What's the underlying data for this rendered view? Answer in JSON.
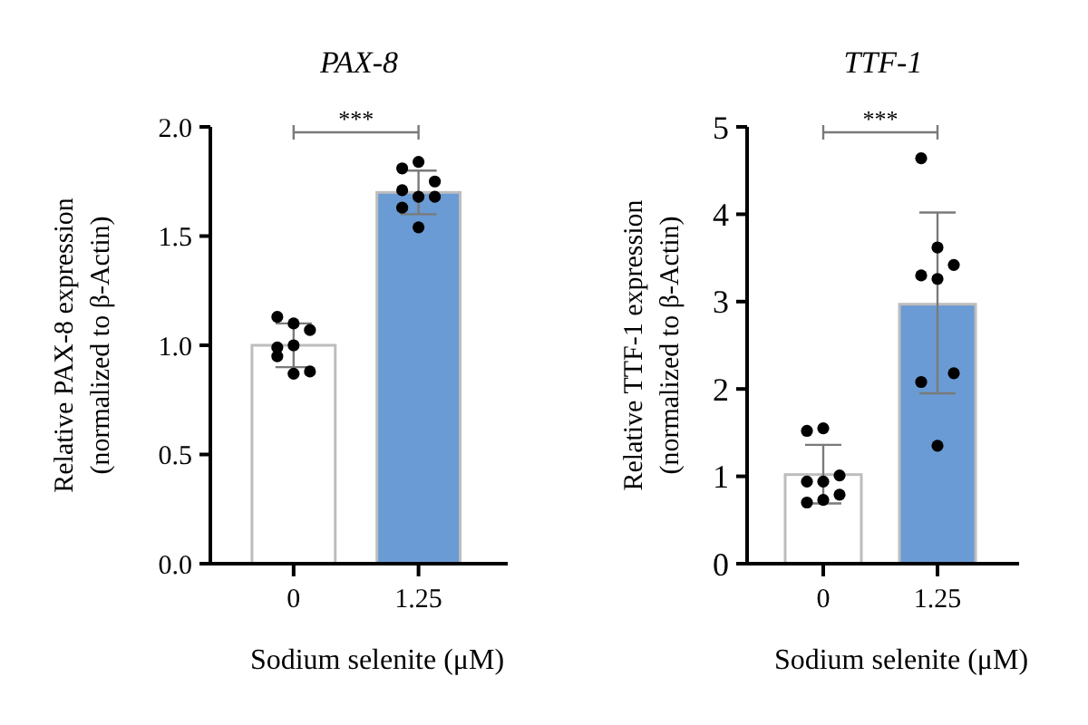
{
  "chart_data": [
    {
      "type": "bar",
      "title": "PAX-8",
      "xlabel": "Sodium selenite (μM)",
      "ylabel": "Relative PAX-8 expression\n(normalized to β-Actin)",
      "categories": [
        "0",
        "1.25"
      ],
      "ylim": [
        0,
        2
      ],
      "yticks": [
        {
          "value": 0,
          "label": "0.0"
        },
        {
          "value": 0.5,
          "label": "0.5"
        },
        {
          "value": 1,
          "label": "1.0"
        },
        {
          "value": 1.5,
          "label": "1.5"
        },
        {
          "value": 2,
          "label": "2.0"
        }
      ],
      "annotations": [
        "***"
      ],
      "series": [
        {
          "values": [
            1.0,
            1.7
          ],
          "colors": [
            "#ffffff",
            "#6a9bd4"
          ],
          "errors": [
            0.1,
            0.1
          ]
        },
        {
          "type": "scatter",
          "color": "#000000",
          "x": [
            "0",
            "0",
            "0",
            "0",
            "0",
            "0",
            "0",
            "0",
            "1.25",
            "1.25",
            "1.25",
            "1.25",
            "1.25",
            "1.25",
            "1.25",
            "1.25"
          ],
          "values": [
            1.13,
            1.1,
            1.07,
            0.99,
            1.0,
            0.88,
            0.95,
            0.87,
            1.81,
            1.84,
            1.75,
            1.71,
            1.68,
            1.68,
            1.63,
            1.54
          ]
        }
      ]
    },
    {
      "type": "bar",
      "title": "TTF-1",
      "xlabel": "Sodium selenite (μM)",
      "ylabel": "Relative TTF-1 expression\n(normalized to β-Actin)",
      "categories": [
        "0",
        "1.25"
      ],
      "ylim": [
        0,
        5
      ],
      "yticks": [
        0,
        1,
        2,
        3,
        4,
        5
      ],
      "annotations": [
        "***"
      ],
      "series": [
        {
          "values": [
            1.02,
            2.97
          ],
          "colors": [
            "#ffffff",
            "#6a9bd4"
          ],
          "errors": [
            [
              0.69,
              1.36
            ],
            [
              1.95,
              4.02
            ]
          ]
        },
        {
          "type": "scatter",
          "color": "#000000",
          "x": [
            "0",
            "0",
            "0",
            "0",
            "0",
            "0",
            "0",
            "0",
            "1.25",
            "1.25",
            "1.25",
            "1.25",
            "1.25",
            "1.25",
            "1.25",
            "1.25"
          ],
          "values": [
            1.52,
            1.55,
            1.01,
            0.94,
            0.94,
            0.79,
            0.7,
            0.73,
            4.64,
            3.62,
            3.42,
            3.3,
            3.26,
            2.18,
            2.08,
            1.35
          ]
        }
      ]
    }
  ]
}
